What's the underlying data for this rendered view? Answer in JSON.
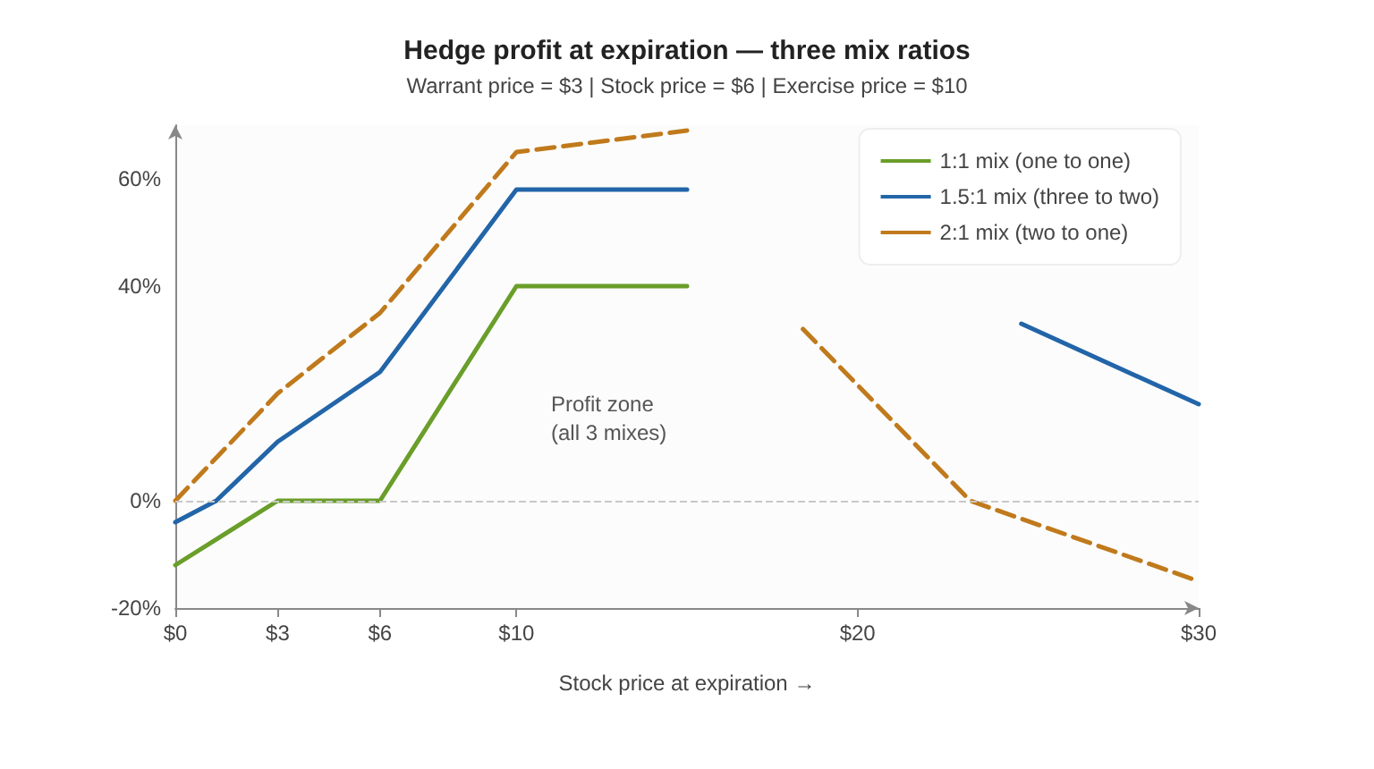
{
  "chart_data": {
    "type": "line",
    "title": "Hedge profit at expiration — three mix ratios",
    "subtitle": "Warrant price = $3 | Stock price = $6 | Exercise price = $10",
    "xlabel": "Stock price at expiration →",
    "xlim": [
      0,
      30
    ],
    "xticks": [
      {
        "value": 0,
        "label": "$0"
      },
      {
        "value": 3,
        "label": "$3"
      },
      {
        "value": 6,
        "label": "$6"
      },
      {
        "value": 10,
        "label": "$10"
      },
      {
        "value": 20,
        "label": "$20"
      },
      {
        "value": 30,
        "label": "$30"
      }
    ],
    "ylim": [
      -20,
      70
    ],
    "yticks": [
      {
        "value": -20,
        "label": "-20%"
      },
      {
        "value": 0,
        "label": "0%"
      },
      {
        "value": 40,
        "label": "40%"
      },
      {
        "value": 60,
        "label": "60%"
      }
    ],
    "series": [
      {
        "name": "1:1 mix (one to one)",
        "color": "#6a9e2a",
        "x": [
          0,
          3,
          6,
          10,
          15
        ],
        "values": [
          -12,
          0,
          0,
          40,
          40
        ]
      },
      {
        "name": "1.5:1 mix (three to two)",
        "color": "#2265a8",
        "x": [
          0,
          1.2,
          3,
          6,
          10,
          15,
          20,
          24.8,
          30
        ],
        "values": [
          -4,
          0,
          11,
          24,
          58,
          58,
          null,
          33,
          18
        ]
      },
      {
        "name": "2:1 mix (two to one)",
        "color": "#c07a1c",
        "line_style": "dashed",
        "x": [
          0,
          3,
          6,
          10,
          15,
          17,
          18.4,
          23.3,
          30
        ],
        "values": [
          0,
          20,
          35,
          65,
          69,
          null,
          32,
          0,
          -15
        ]
      }
    ],
    "ref_lines": [
      {
        "axis": "y",
        "value": 0,
        "color": "#c8c8c8",
        "line_style": "dashed"
      }
    ],
    "annotations": [
      "Profit zone\n(all 3 mixes)"
    ],
    "marker": "none",
    "grid": false,
    "legend": "top right"
  }
}
